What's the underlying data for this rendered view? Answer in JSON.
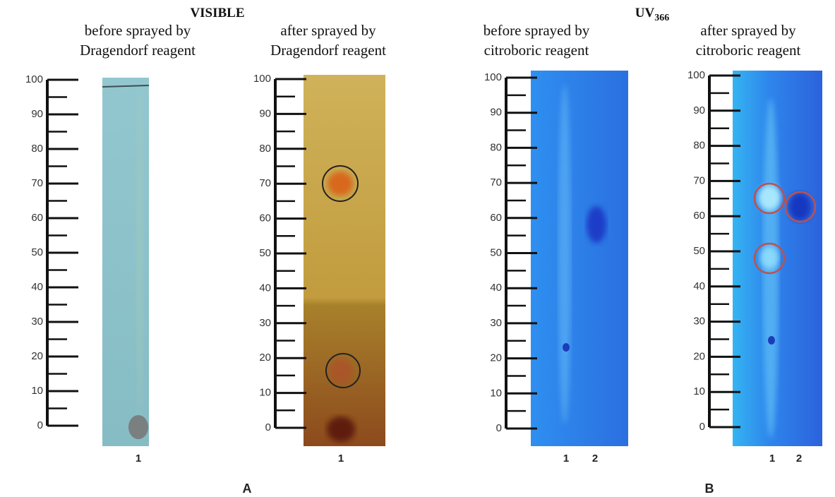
{
  "groups": [
    {
      "title": "VISIBLE",
      "letter": "A"
    },
    {
      "title": "UV",
      "title_sub": "366",
      "letter": "B"
    }
  ],
  "panels": [
    {
      "caption": [
        "before sprayed by",
        "Dragendorf reagent"
      ],
      "lanes": [
        "1"
      ]
    },
    {
      "caption": [
        "after sprayed by",
        "Dragendorf reagent"
      ],
      "lanes": [
        "1"
      ]
    },
    {
      "caption": [
        "before sprayed by",
        "citroboric reagent"
      ],
      "lanes": [
        "1",
        "2"
      ]
    },
    {
      "caption": [
        "after sprayed by",
        "citroboric reagent"
      ],
      "lanes": [
        "1",
        "2"
      ]
    }
  ],
  "ruler_ticks": [
    0,
    10,
    20,
    30,
    40,
    50,
    60,
    70,
    80,
    90,
    100
  ]
}
